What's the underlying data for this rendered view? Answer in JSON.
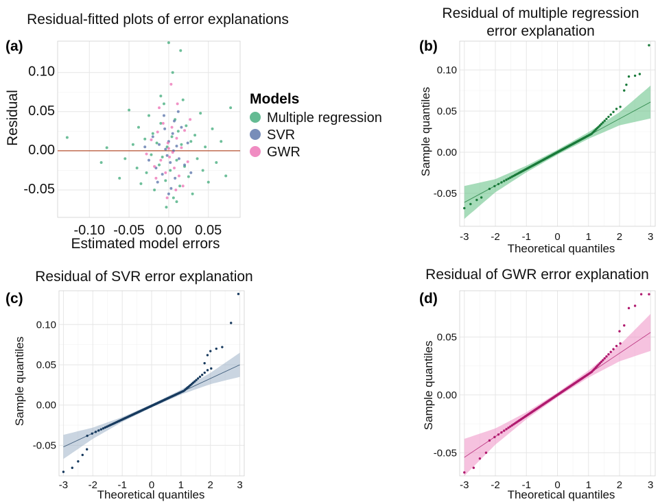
{
  "figure_title": "Residual-fitted plots of error explanations",
  "chart_data": [
    {
      "id": "a",
      "panel_label": "(a)",
      "type": "scatter",
      "title": "Residual-fitted plots of error explanations",
      "xlabel": "Estimated model errors",
      "ylabel": "Residual",
      "xlim": [
        -0.14,
        0.09
      ],
      "ylim": [
        -0.085,
        0.14
      ],
      "xticks": [
        -0.1,
        -0.05,
        0.0,
        0.05
      ],
      "xtick_labels": [
        "-0.10",
        "-0.05",
        "0.00",
        "0.05"
      ],
      "yticks": [
        -0.05,
        0.0,
        0.05,
        0.1
      ],
      "ytick_labels": [
        "-0.05",
        "0.00",
        "0.05",
        "0.10"
      ],
      "grid": true,
      "reference_line": {
        "y": 0,
        "color": "#b5502f"
      },
      "legend": {
        "title": "Models",
        "position": "right",
        "entries": [
          {
            "name": "Multiple regression",
            "color": "#3daa78"
          },
          {
            "name": "SVR",
            "color": "#5670a8"
          },
          {
            "name": "GWR",
            "color": "#ec6fb3"
          }
        ]
      },
      "series": [
        {
          "name": "Multiple regression",
          "color": "#3daa78",
          "points": [
            [
              -0.128,
              0.017
            ],
            [
              -0.085,
              -0.015
            ],
            [
              -0.078,
              0.004
            ],
            [
              -0.062,
              -0.035
            ],
            [
              -0.055,
              -0.01
            ],
            [
              -0.05,
              0.052
            ],
            [
              -0.045,
              0.008
            ],
            [
              -0.04,
              -0.022
            ],
            [
              -0.038,
              0.03
            ],
            [
              -0.035,
              -0.042
            ],
            [
              -0.03,
              0.015
            ],
            [
              -0.028,
              -0.028
            ],
            [
              -0.025,
              0.045
            ],
            [
              -0.022,
              -0.005
            ],
            [
              -0.02,
              0.022
            ],
            [
              -0.018,
              -0.05
            ],
            [
              -0.015,
              0.01
            ],
            [
              -0.012,
              -0.018
            ],
            [
              -0.01,
              0.035
            ],
            [
              -0.008,
              -0.008
            ],
            [
              -0.006,
              0.06
            ],
            [
              -0.004,
              -0.038
            ],
            [
              -0.002,
              0.005
            ],
            [
              0.0,
              0.138
            ],
            [
              0.002,
              -0.025
            ],
            [
              0.004,
              0.018
            ],
            [
              0.006,
              -0.06
            ],
            [
              0.008,
              0.04
            ],
            [
              0.01,
              -0.012
            ],
            [
              0.012,
              0.025
            ],
            [
              0.014,
              -0.045
            ],
            [
              0.016,
              0.008
            ],
            [
              0.018,
              0.065
            ],
            [
              0.02,
              -0.02
            ],
            [
              0.022,
              0.032
            ],
            [
              0.025,
              -0.033
            ],
            [
              0.028,
              0.012
            ],
            [
              0.03,
              -0.055
            ],
            [
              0.033,
              0.02
            ],
            [
              0.036,
              -0.01
            ],
            [
              0.04,
              0.048
            ],
            [
              0.043,
              -0.025
            ],
            [
              0.046,
              0.005
            ],
            [
              0.05,
              -0.04
            ],
            [
              0.055,
              0.028
            ],
            [
              0.06,
              -0.015
            ],
            [
              0.066,
              0.012
            ],
            [
              0.072,
              -0.032
            ],
            [
              0.078,
              0.055
            ],
            [
              0.015,
              0.128
            ],
            [
              -0.01,
              0.07
            ],
            [
              0.005,
              0.1
            ],
            [
              -0.003,
              -0.072
            ],
            [
              0.01,
              -0.065
            ]
          ]
        },
        {
          "name": "SVR",
          "color": "#5670a8",
          "points": [
            [
              -0.03,
              0.005
            ],
            [
              -0.025,
              -0.012
            ],
            [
              -0.02,
              0.018
            ],
            [
              -0.016,
              -0.022
            ],
            [
              -0.012,
              0.008
            ],
            [
              -0.008,
              -0.03
            ],
            [
              -0.005,
              0.028
            ],
            [
              -0.002,
              -0.006
            ],
            [
              0.0,
              0.012
            ],
            [
              0.002,
              -0.015
            ],
            [
              0.005,
              0.022
            ],
            [
              0.008,
              -0.035
            ],
            [
              0.01,
              0.006
            ],
            [
              0.013,
              -0.01
            ],
            [
              0.016,
              0.03
            ],
            [
              0.02,
              -0.018
            ],
            [
              0.024,
              0.01
            ],
            [
              0.028,
              -0.028
            ],
            [
              -0.006,
              0.045
            ],
            [
              0.003,
              -0.048
            ],
            [
              0.007,
              0.038
            ],
            [
              -0.014,
              -0.04
            ],
            [
              0.012,
              0.05
            ],
            [
              0.0,
              -0.055
            ],
            [
              -0.004,
              0.002
            ],
            [
              0.006,
              0.0
            ]
          ]
        },
        {
          "name": "GWR",
          "color": "#ec6fb3",
          "points": [
            [
              -0.028,
              -0.004
            ],
            [
              -0.022,
              0.014
            ],
            [
              -0.018,
              -0.02
            ],
            [
              -0.014,
              0.024
            ],
            [
              -0.01,
              -0.012
            ],
            [
              -0.007,
              0.035
            ],
            [
              -0.004,
              -0.028
            ],
            [
              -0.001,
              0.01
            ],
            [
              0.001,
              -0.008
            ],
            [
              0.004,
              0.03
            ],
            [
              0.007,
              -0.022
            ],
            [
              0.01,
              0.016
            ],
            [
              0.013,
              -0.032
            ],
            [
              0.016,
              0.004
            ],
            [
              0.02,
              0.026
            ],
            [
              0.024,
              -0.014
            ],
            [
              0.027,
              0.04
            ],
            [
              -0.012,
              0.055
            ],
            [
              0.009,
              -0.05
            ],
            [
              0.003,
              0.085
            ],
            [
              -0.002,
              -0.06
            ],
            [
              0.011,
              0.06
            ],
            [
              -0.016,
              -0.035
            ],
            [
              0.018,
              -0.045
            ],
            [
              0.0,
              0.003
            ],
            [
              0.005,
              -0.002
            ]
          ]
        }
      ]
    },
    {
      "id": "b",
      "panel_label": "(b)",
      "type": "scatter",
      "title": "Residual of multiple regression error explanation",
      "xlabel": "Theoretical quantiles",
      "ylabel": "Sample quantiles",
      "xlim": [
        -3.15,
        3.15
      ],
      "ylim": [
        -0.09,
        0.135
      ],
      "xticks": [
        -3,
        -2,
        -1,
        0,
        1,
        2,
        3
      ],
      "xtick_labels": [
        "-3",
        "-2",
        "-1",
        "0",
        "1",
        "2",
        "3"
      ],
      "yticks": [
        -0.05,
        0.0,
        0.05,
        0.1
      ],
      "ytick_labels": [
        "-0.05",
        "0.00",
        "0.05",
        "0.10"
      ],
      "grid": true,
      "color": "#1a7a3a",
      "band_color": "#5fbf82",
      "reference_line": {
        "x": [
          -3,
          3
        ],
        "y": [
          -0.061,
          0.061
        ]
      },
      "band_halfwidth": {
        "x": [
          -3,
          -2,
          -1,
          0,
          1,
          2,
          3
        ],
        "w": [
          0.02,
          0.008,
          0.004,
          0.003,
          0.004,
          0.008,
          0.02
        ]
      },
      "tail_points": [
        [
          -3,
          -0.068
        ],
        [
          -2.8,
          -0.063
        ],
        [
          -2.6,
          -0.058
        ],
        [
          -2.45,
          -0.055
        ],
        [
          2.15,
          0.075
        ],
        [
          2.22,
          0.082
        ],
        [
          2.3,
          0.092
        ],
        [
          2.5,
          0.093
        ],
        [
          2.65,
          0.095
        ],
        [
          2.95,
          0.13
        ]
      ],
      "upper_tail_shift": 0.014
    },
    {
      "id": "c",
      "panel_label": "(c)",
      "type": "scatter",
      "title": "Residual of SVR error explanation",
      "xlabel": "Theoretical quantiles",
      "ylabel": "Sample quantiles",
      "xlim": [
        -3.15,
        3.15
      ],
      "ylim": [
        -0.088,
        0.142
      ],
      "xticks": [
        -3,
        -2,
        -1,
        0,
        1,
        2,
        3
      ],
      "xtick_labels": [
        "-3",
        "-2",
        "-1",
        "0",
        "1",
        "2",
        "3"
      ],
      "yticks": [
        -0.05,
        0.0,
        0.05,
        0.1
      ],
      "ytick_labels": [
        "-0.05",
        "0.00",
        "0.05",
        "0.10"
      ],
      "grid": true,
      "color": "#173a5e",
      "band_color": "#9eb2c9",
      "reference_line": {
        "x": [
          -3,
          3
        ],
        "y": [
          -0.052,
          0.05
        ]
      },
      "band_halfwidth": {
        "x": [
          -3,
          -2,
          -1,
          0,
          1,
          2,
          3
        ],
        "w": [
          0.015,
          0.007,
          0.003,
          0.002,
          0.003,
          0.007,
          0.015
        ]
      },
      "tail_points": [
        [
          -3,
          -0.083
        ],
        [
          -2.7,
          -0.078
        ],
        [
          -2.5,
          -0.07
        ],
        [
          -2.35,
          -0.062
        ],
        [
          -2.2,
          -0.055
        ],
        [
          1.8,
          0.052
        ],
        [
          1.9,
          0.062
        ],
        [
          2.0,
          0.067
        ],
        [
          2.2,
          0.07
        ],
        [
          2.4,
          0.072
        ],
        [
          2.7,
          0.102
        ],
        [
          2.95,
          0.138
        ]
      ],
      "upper_tail_shift": 0.012
    },
    {
      "id": "d",
      "panel_label": "(d)",
      "type": "scatter",
      "title": "Residual of GWR error explanation",
      "xlabel": "Theoretical quantiles",
      "ylabel": "Sample quantiles",
      "xlim": [
        -3.15,
        3.15
      ],
      "ylim": [
        -0.07,
        0.09
      ],
      "xticks": [
        -3,
        -2,
        -1,
        0,
        1,
        2,
        3
      ],
      "xtick_labels": [
        "-3",
        "-2",
        "-1",
        "0",
        "1",
        "2",
        "3"
      ],
      "yticks": [
        -0.05,
        0.0,
        0.05
      ],
      "ytick_labels": [
        "-0.05",
        "0.00",
        "0.05"
      ],
      "grid": true,
      "color": "#b01a6e",
      "band_color": "#ef8fc4",
      "reference_line": {
        "x": [
          -3,
          3
        ],
        "y": [
          -0.054,
          0.054
        ]
      },
      "band_halfwidth": {
        "x": [
          -3,
          -2,
          -1,
          0,
          1,
          2,
          3
        ],
        "w": [
          0.016,
          0.007,
          0.003,
          0.002,
          0.003,
          0.007,
          0.016
        ]
      },
      "tail_points": [
        [
          -3,
          -0.067
        ],
        [
          -2.7,
          -0.063
        ],
        [
          -2.5,
          -0.055
        ],
        [
          -2.3,
          -0.05
        ],
        [
          2.0,
          0.055
        ],
        [
          2.15,
          0.06
        ],
        [
          2.3,
          0.075
        ],
        [
          2.5,
          0.077
        ],
        [
          2.7,
          0.087
        ],
        [
          2.95,
          0.087
        ]
      ],
      "upper_tail_shift": 0.008
    }
  ]
}
